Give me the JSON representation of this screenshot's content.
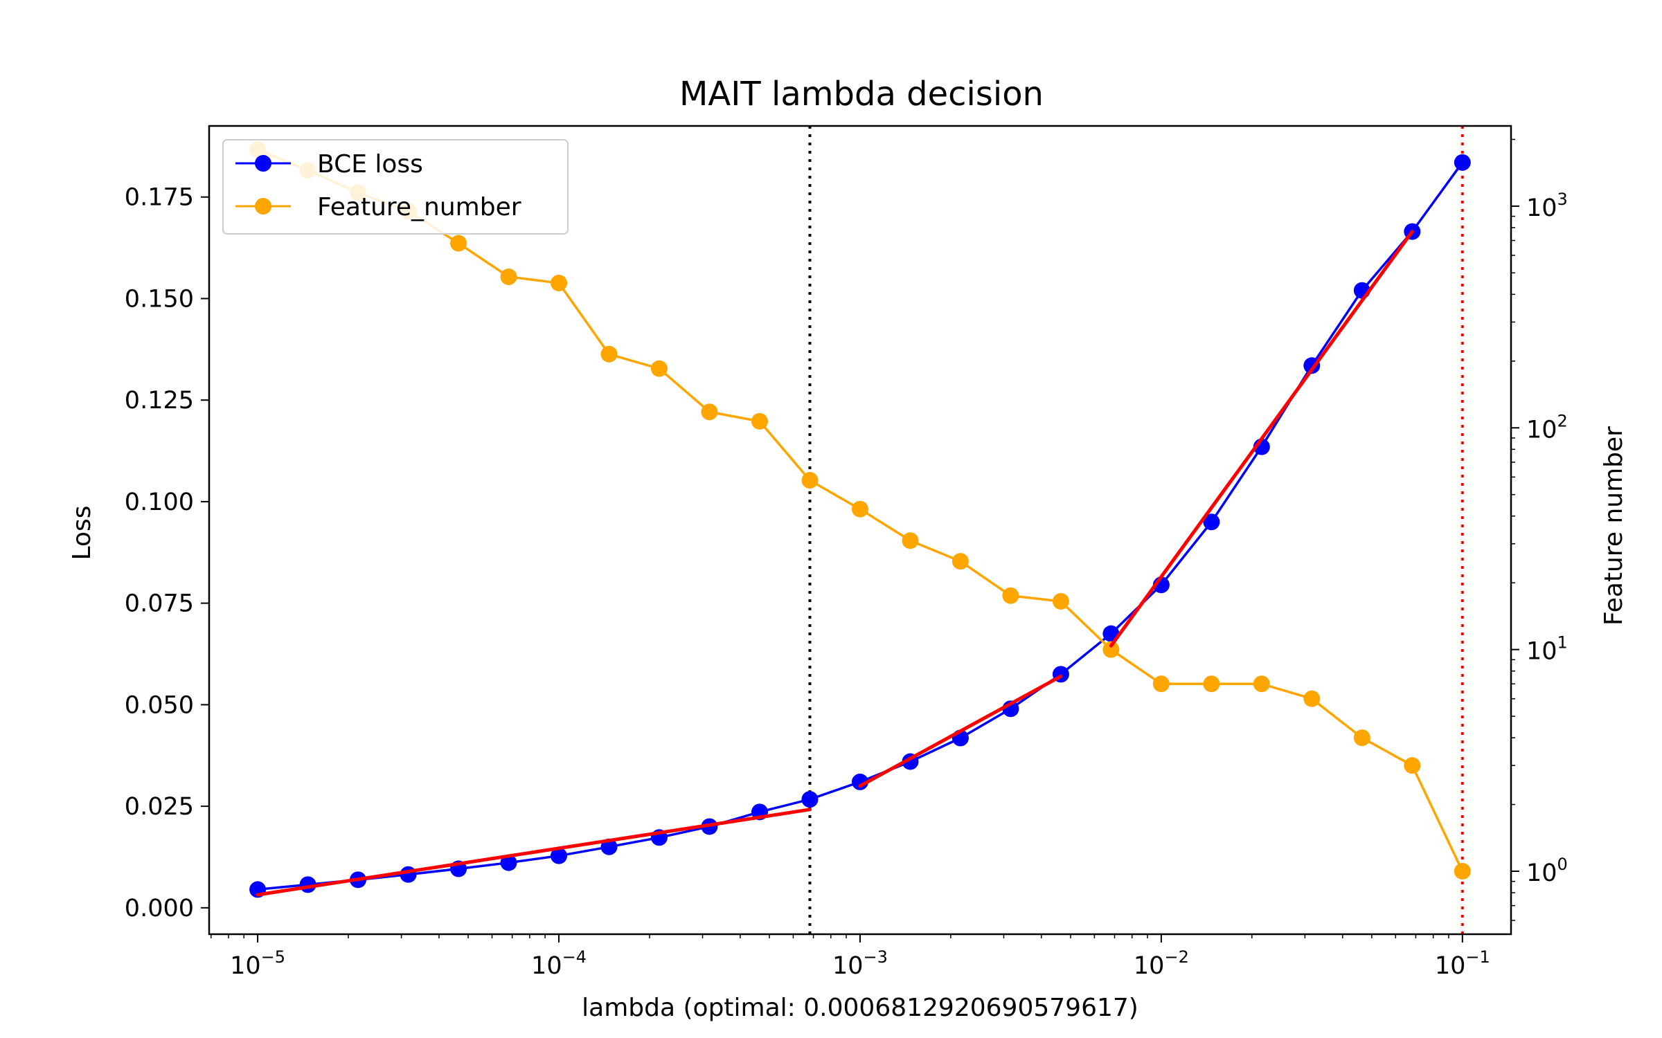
{
  "chart_data": {
    "type": "line",
    "title": "MAIT lambda decision",
    "xlabel": "lambda (optimal: 0.0006812920690579617)",
    "ylabel": "Loss",
    "ylabel_right": "Feature number",
    "x_scale": "log",
    "y2_scale": "log",
    "xlim": [
      6.9e-06,
      0.145
    ],
    "ylim": [
      -0.0065,
      0.1925
    ],
    "y2lim": [
      0.52,
      2300
    ],
    "x_ticks": [
      {
        "value": 1e-05,
        "base": "10",
        "exp": "−5"
      },
      {
        "value": 0.0001,
        "base": "10",
        "exp": "−4"
      },
      {
        "value": 0.001,
        "base": "10",
        "exp": "−3"
      },
      {
        "value": 0.01,
        "base": "10",
        "exp": "−2"
      },
      {
        "value": 0.1,
        "base": "10",
        "exp": "−1"
      }
    ],
    "y_ticks": [
      {
        "value": 0.0,
        "label": "0.000"
      },
      {
        "value": 0.025,
        "label": "0.025"
      },
      {
        "value": 0.05,
        "label": "0.050"
      },
      {
        "value": 0.075,
        "label": "0.075"
      },
      {
        "value": 0.1,
        "label": "0.100"
      },
      {
        "value": 0.125,
        "label": "0.125"
      },
      {
        "value": 0.15,
        "label": "0.150"
      },
      {
        "value": 0.175,
        "label": "0.175"
      }
    ],
    "y2_ticks": [
      {
        "value": 1,
        "base": "10",
        "exp": "0"
      },
      {
        "value": 10,
        "base": "10",
        "exp": "1"
      },
      {
        "value": 100,
        "base": "10",
        "exp": "2"
      },
      {
        "value": 1000,
        "base": "10",
        "exp": "3"
      }
    ],
    "x": [
      1e-05,
      1.468e-05,
      2.154e-05,
      3.162e-05,
      4.642e-05,
      6.813e-05,
      0.0001,
      0.0001468,
      0.0002154,
      0.0003162,
      0.0004642,
      0.0006813,
      0.001,
      0.001468,
      0.002154,
      0.003162,
      0.004642,
      0.006813,
      0.01,
      0.01468,
      0.02154,
      0.03162,
      0.04642,
      0.06813,
      0.1
    ],
    "series": [
      {
        "name": "BCE loss",
        "axis": "left",
        "color": "#0000ff",
        "values": [
          0.0045,
          0.0057,
          0.0069,
          0.0082,
          0.0096,
          0.0111,
          0.0128,
          0.015,
          0.0173,
          0.02,
          0.0236,
          0.0267,
          0.031,
          0.036,
          0.0418,
          0.049,
          0.0575,
          0.0675,
          0.0795,
          0.095,
          0.1135,
          0.1335,
          0.152,
          0.1665,
          0.1835
        ]
      },
      {
        "name": "Feature_number",
        "axis": "right",
        "color": "#ffa500",
        "values": [
          1800,
          1450,
          1150,
          950,
          680,
          480,
          450,
          215,
          185,
          118,
          107,
          58,
          43,
          31,
          25,
          17.5,
          16.5,
          10,
          7,
          7,
          7,
          6,
          4,
          3,
          1
        ]
      }
    ],
    "fit_segments": {
      "color": "#ff0000",
      "segments": [
        {
          "x": [
            1e-05,
            0.0006813
          ],
          "y": [
            0.0032,
            0.0242
          ]
        },
        {
          "x": [
            0.001,
            0.004642
          ],
          "y": [
            0.03,
            0.057
          ]
        },
        {
          "x": [
            0.006813,
            0.06813
          ],
          "y": [
            0.0645,
            0.1665
          ]
        }
      ]
    },
    "vlines": [
      {
        "x": 0.0006812920690579617,
        "color": "#000000",
        "style": "dotted"
      },
      {
        "x": 0.1,
        "color": "#ff0000",
        "style": "dotted"
      }
    ],
    "legend": {
      "position": "upper-left"
    },
    "grid": false
  }
}
